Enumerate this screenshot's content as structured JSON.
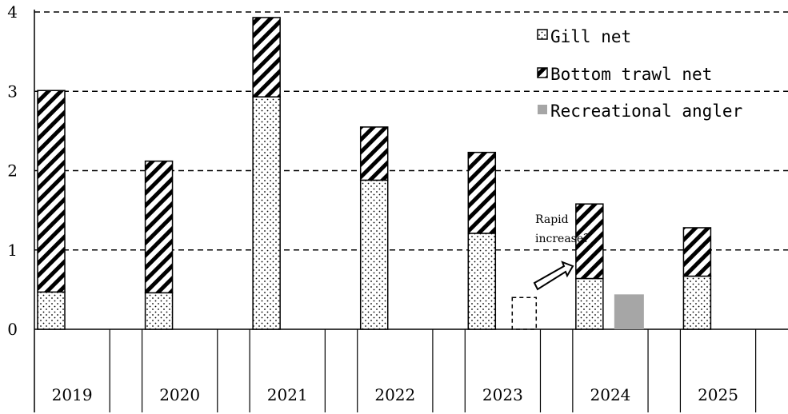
{
  "chart_data": {
    "type": "bar",
    "stacked": true,
    "categories": [
      "2019",
      "2020",
      "2021",
      "2022",
      "2023",
      "2024",
      "2025"
    ],
    "series": [
      {
        "name": "Gill net",
        "values": [
          0.47,
          0.46,
          2.93,
          1.88,
          1.21,
          0.64,
          0.67
        ],
        "pattern": "dots"
      },
      {
        "name": "Bottom trawl net",
        "values": [
          2.54,
          1.66,
          1.0,
          0.67,
          1.02,
          0.94,
          0.61
        ],
        "pattern": "hatch"
      },
      {
        "name": "Recreational angler",
        "values": [
          null,
          null,
          null,
          null,
          null,
          0.44,
          null
        ],
        "color": "#a6a6a6"
      }
    ],
    "yticks": [
      "0",
      "1",
      "2",
      "3",
      "4"
    ],
    "ylim": [
      0,
      4
    ],
    "grid": "horizontal-dashed",
    "legend_position": "top-right",
    "annotations": [
      {
        "text_line1": "Rapid",
        "text_line2": "increase？",
        "near": "2023"
      }
    ],
    "dashed_box": {
      "category": "2023",
      "value": 0.4
    }
  }
}
